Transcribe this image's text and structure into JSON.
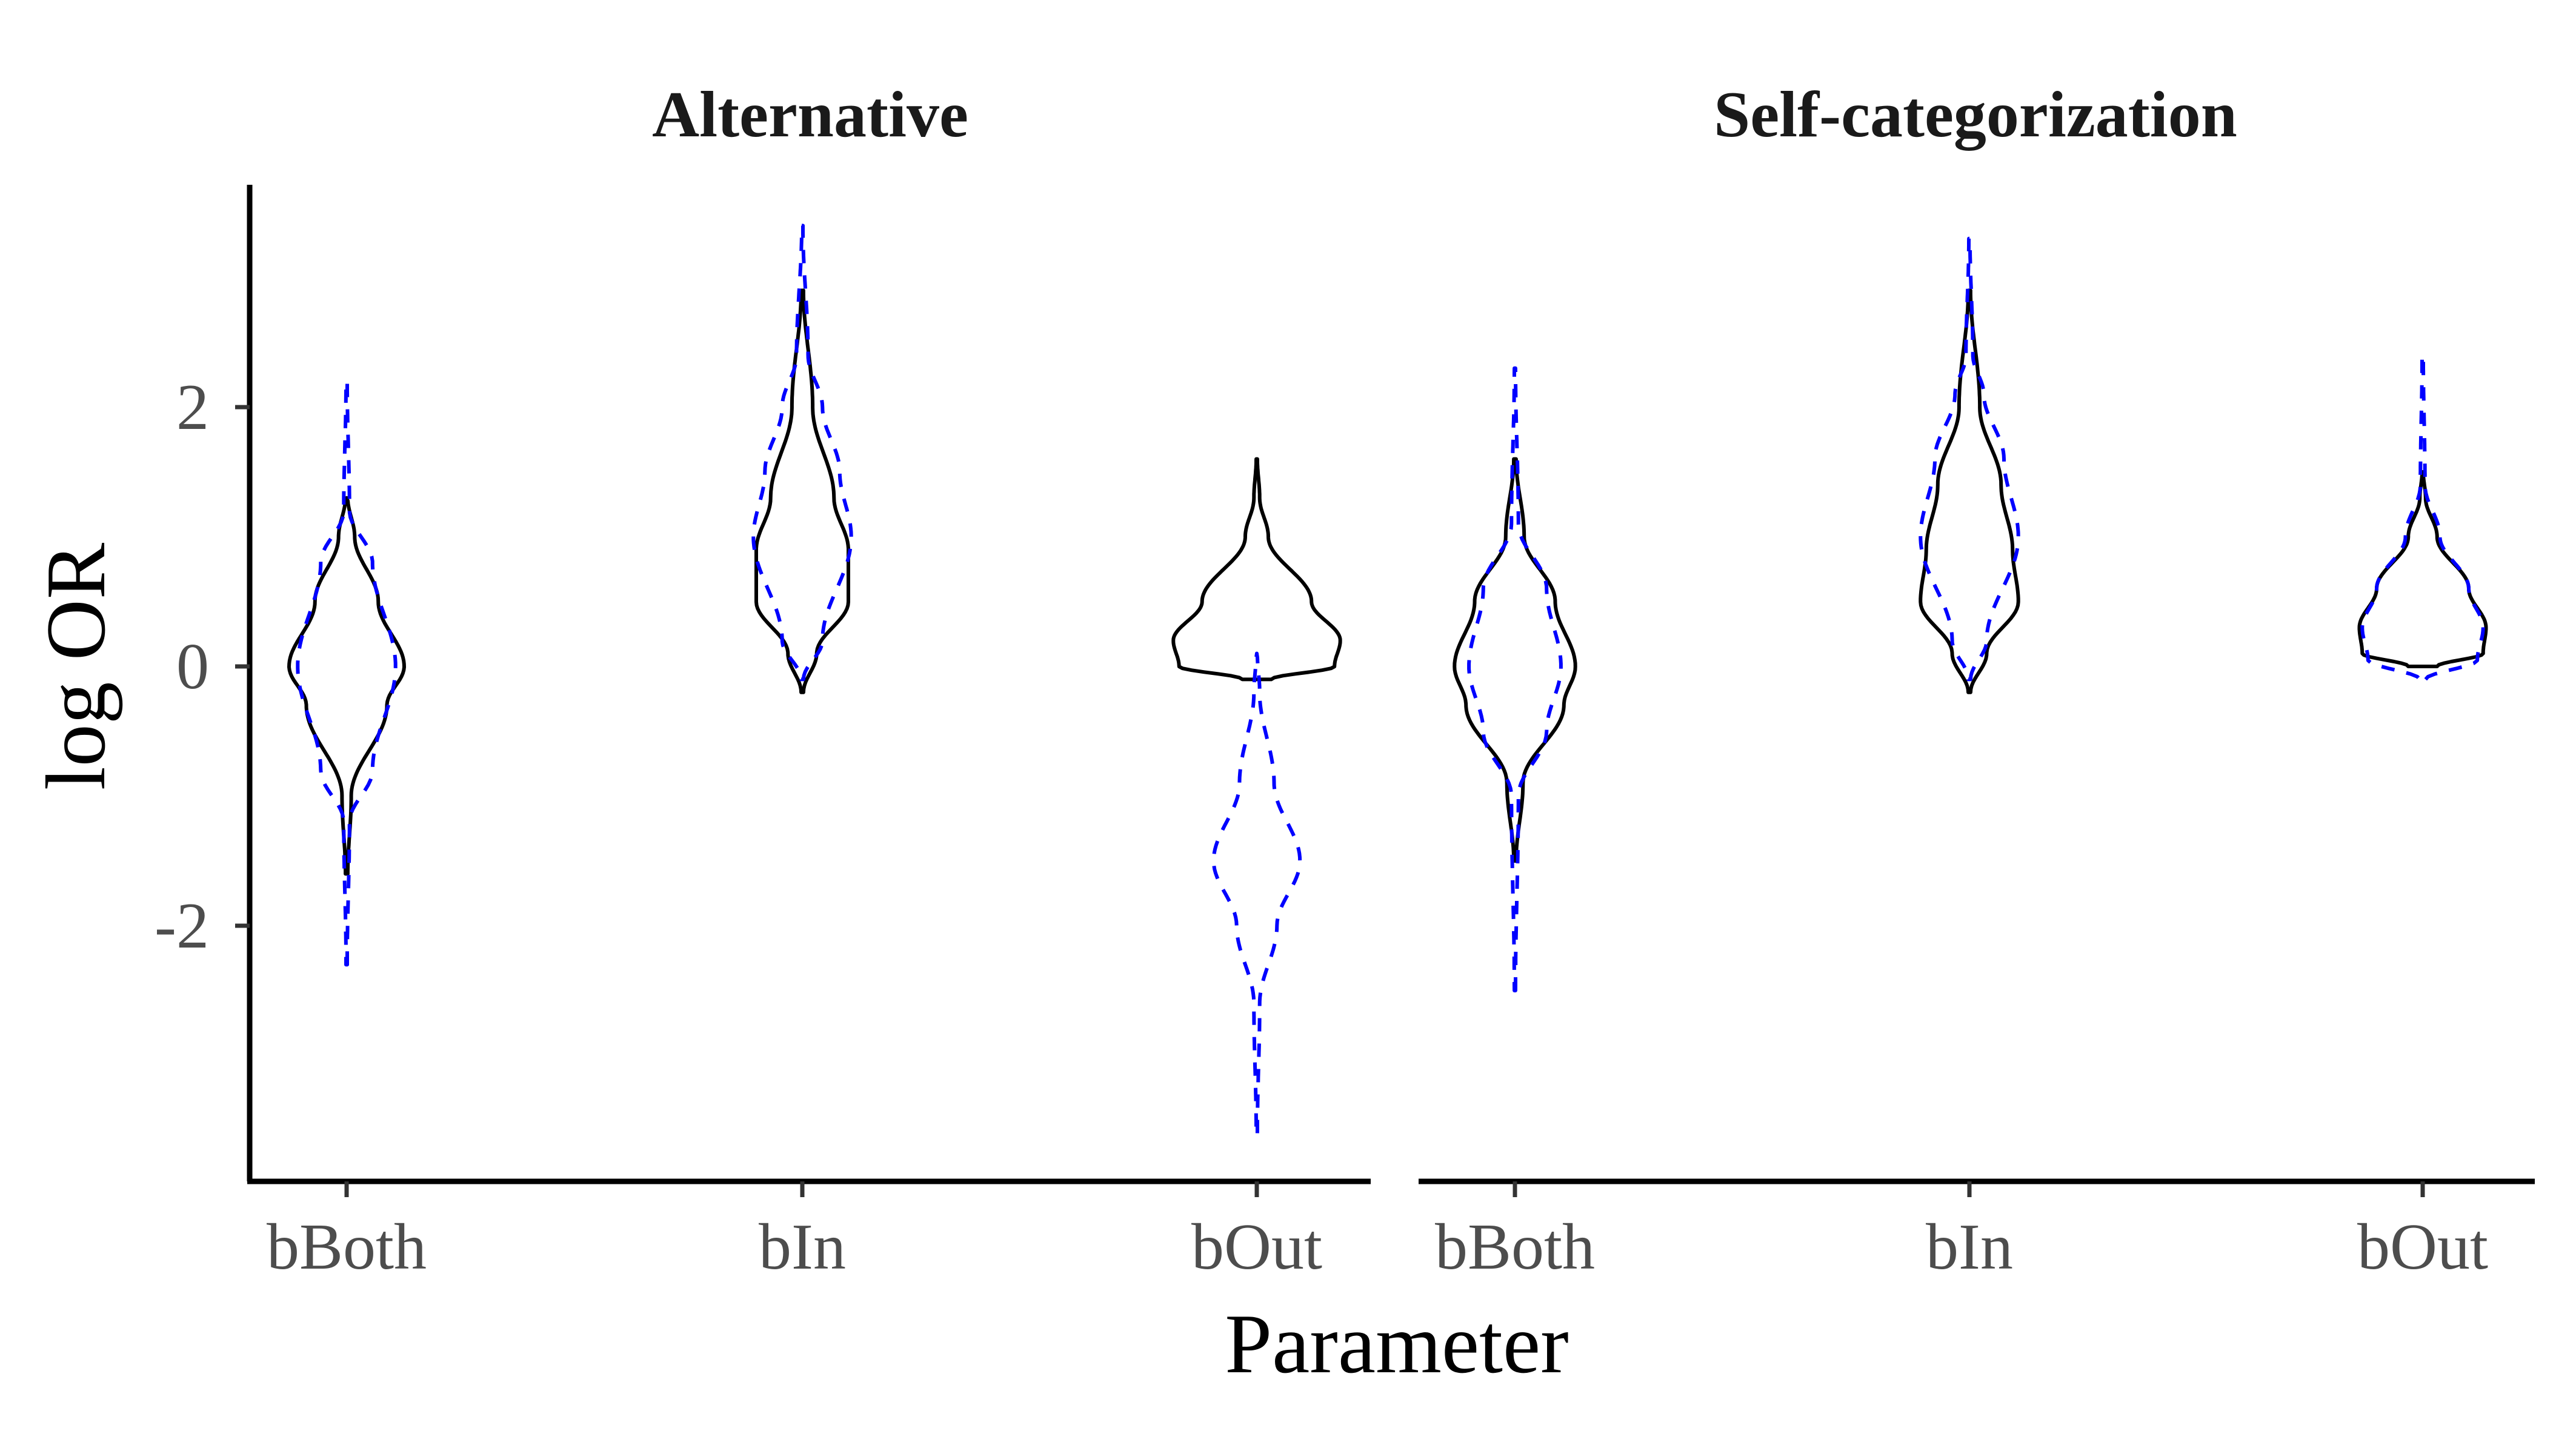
{
  "chart_data": {
    "type": "violin",
    "title": "",
    "xlabel": "Parameter",
    "ylabel": "log OR",
    "ylim": [
      -3.9,
      3.7
    ],
    "yticks": [
      -2,
      0,
      2
    ],
    "ytick_labels": [
      "-2",
      "0",
      "2"
    ],
    "categories": [
      "bBoth",
      "bIn",
      "bOut"
    ],
    "grid": false,
    "legend": "none",
    "colors": {
      "solid": "#000000",
      "dashed": "#0000ff"
    },
    "facets": [
      {
        "title": "Alternative",
        "violins": [
          {
            "parameter": "bBoth",
            "line": "solid",
            "color": "#000000",
            "ymin": -1.6,
            "ymax": 1.3,
            "profile": [
              [
                -1.6,
                0.02
              ],
              [
                -1.0,
                0.08
              ],
              [
                -0.3,
                0.7
              ],
              [
                0.0,
                1.0
              ],
              [
                0.5,
                0.55
              ],
              [
                1.0,
                0.14
              ],
              [
                1.3,
                0.02
              ]
            ]
          },
          {
            "parameter": "bBoth",
            "line": "dashed",
            "color": "#0000ff",
            "ymin": -2.3,
            "ymax": 2.2,
            "profile": [
              [
                -2.3,
                0.01
              ],
              [
                -1.2,
                0.05
              ],
              [
                -0.8,
                0.45
              ],
              [
                0.0,
                0.85
              ],
              [
                0.8,
                0.45
              ],
              [
                1.2,
                0.05
              ],
              [
                2.2,
                0.01
              ]
            ]
          },
          {
            "parameter": "bIn",
            "line": "solid",
            "color": "#000000",
            "ymin": -0.2,
            "ymax": 2.9,
            "profile": [
              [
                -0.2,
                0.02
              ],
              [
                0.1,
                0.25
              ],
              [
                0.5,
                0.8
              ],
              [
                0.9,
                0.8
              ],
              [
                1.3,
                0.55
              ],
              [
                2.0,
                0.18
              ],
              [
                2.9,
                0.02
              ]
            ]
          },
          {
            "parameter": "bIn",
            "line": "dashed",
            "color": "#0000ff",
            "ymin": -0.1,
            "ymax": 3.4,
            "profile": [
              [
                -0.1,
                0.02
              ],
              [
                0.2,
                0.35
              ],
              [
                1.0,
                0.85
              ],
              [
                1.5,
                0.65
              ],
              [
                2.0,
                0.35
              ],
              [
                2.4,
                0.1
              ],
              [
                3.4,
                0.01
              ]
            ]
          },
          {
            "parameter": "bOut",
            "line": "solid",
            "color": "#000000",
            "ymin": -0.1,
            "ymax": 1.6,
            "profile": [
              [
                -0.1,
                0.25
              ],
              [
                0.0,
                1.35
              ],
              [
                0.2,
                1.45
              ],
              [
                0.5,
                0.95
              ],
              [
                1.0,
                0.2
              ],
              [
                1.3,
                0.05
              ],
              [
                1.6,
                0.01
              ]
            ]
          },
          {
            "parameter": "bOut",
            "line": "dashed",
            "color": "#0000ff",
            "ymin": -3.6,
            "ymax": 0.1,
            "profile": [
              [
                -3.6,
                0.01
              ],
              [
                -2.6,
                0.05
              ],
              [
                -2.0,
                0.35
              ],
              [
                -1.5,
                0.75
              ],
              [
                -0.9,
                0.3
              ],
              [
                -0.2,
                0.05
              ],
              [
                0.1,
                0.01
              ]
            ]
          }
        ]
      },
      {
        "title": "Self-categorization",
        "violins": [
          {
            "parameter": "bBoth",
            "line": "solid",
            "color": "#000000",
            "ymin": -1.5,
            "ymax": 1.6,
            "profile": [
              [
                -1.5,
                0.02
              ],
              [
                -0.9,
                0.14
              ],
              [
                -0.3,
                0.85
              ],
              [
                0.0,
                1.05
              ],
              [
                0.5,
                0.7
              ],
              [
                1.0,
                0.16
              ],
              [
                1.6,
                0.02
              ]
            ]
          },
          {
            "parameter": "bBoth",
            "line": "dashed",
            "color": "#0000ff",
            "ymin": -2.5,
            "ymax": 2.3,
            "profile": [
              [
                -2.5,
                0.01
              ],
              [
                -1.0,
                0.06
              ],
              [
                -0.5,
                0.55
              ],
              [
                0.0,
                0.8
              ],
              [
                0.6,
                0.55
              ],
              [
                1.1,
                0.06
              ],
              [
                2.3,
                0.01
              ]
            ]
          },
          {
            "parameter": "bIn",
            "line": "solid",
            "color": "#000000",
            "ymin": -0.2,
            "ymax": 2.9,
            "profile": [
              [
                -0.2,
                0.02
              ],
              [
                0.1,
                0.3
              ],
              [
                0.5,
                0.85
              ],
              [
                0.9,
                0.75
              ],
              [
                1.4,
                0.55
              ],
              [
                2.0,
                0.18
              ],
              [
                2.9,
                0.02
              ]
            ]
          },
          {
            "parameter": "bIn",
            "line": "dashed",
            "color": "#0000ff",
            "ymin": -0.1,
            "ymax": 3.3,
            "profile": [
              [
                -0.1,
                0.02
              ],
              [
                0.2,
                0.3
              ],
              [
                1.0,
                0.85
              ],
              [
                1.6,
                0.6
              ],
              [
                2.1,
                0.25
              ],
              [
                2.4,
                0.06
              ],
              [
                3.3,
                0.01
              ]
            ]
          },
          {
            "parameter": "bOut",
            "line": "solid",
            "color": "#000000",
            "ymin": 0.0,
            "ymax": 1.5,
            "profile": [
              [
                0.0,
                0.25
              ],
              [
                0.1,
                1.05
              ],
              [
                0.3,
                1.1
              ],
              [
                0.6,
                0.8
              ],
              [
                1.0,
                0.25
              ],
              [
                1.3,
                0.05
              ],
              [
                1.5,
                0.01
              ]
            ]
          },
          {
            "parameter": "bOut",
            "line": "dashed",
            "color": "#0000ff",
            "ymin": -0.1,
            "ymax": 2.4,
            "profile": [
              [
                -0.1,
                0.05
              ],
              [
                0.05,
                0.95
              ],
              [
                0.3,
                1.05
              ],
              [
                0.6,
                0.8
              ],
              [
                1.0,
                0.3
              ],
              [
                1.4,
                0.04
              ],
              [
                2.4,
                0.01
              ]
            ]
          }
        ]
      }
    ]
  }
}
